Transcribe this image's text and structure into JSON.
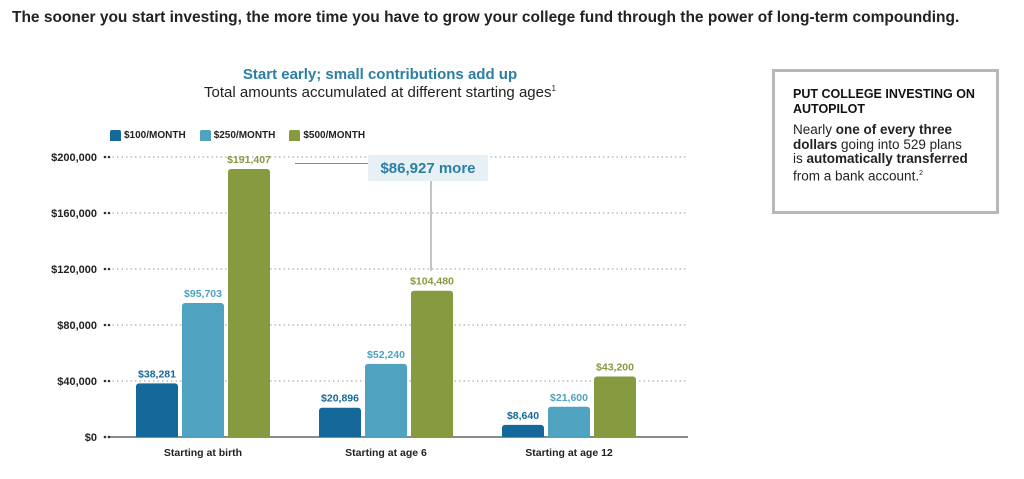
{
  "headline": "The sooner you start investing, the more time you have to grow your college fund through the power of long-term compounding.",
  "chart_data": {
    "type": "bar",
    "title": "Start early; small contributions add up",
    "subtitle": "Total amounts accumulated at different starting ages",
    "subtitle_footnote": "1",
    "categories": [
      "Starting at birth",
      "Starting at age 6",
      "Starting at age 12"
    ],
    "series": [
      {
        "name": "$100/MONTH",
        "color": "#15699a",
        "values": [
          38281,
          20896,
          8640
        ],
        "labels": [
          "$38,281",
          "$20,896",
          "$8,640"
        ]
      },
      {
        "name": "$250/MONTH",
        "color": "#4fa3c1",
        "values": [
          95703,
          52240,
          21600
        ],
        "labels": [
          "$95,703",
          "$52,240",
          "$21,600"
        ]
      },
      {
        "name": "$500/MONTH",
        "color": "#869a3f",
        "values": [
          191407,
          104480,
          43200
        ],
        "labels": [
          "$191,407",
          "$104,480",
          "$43,200"
        ]
      }
    ],
    "yticks": [
      0,
      40000,
      80000,
      120000,
      160000,
      200000
    ],
    "ytick_labels": [
      "$0",
      "$40,000",
      "$80,000",
      "$120,000",
      "$160,000",
      "$200,000"
    ],
    "ylim": [
      0,
      200000
    ],
    "grid": true,
    "legend_position": "top-left",
    "annotation": "$86,927 more"
  },
  "sidebar": {
    "title": "PUT COLLEGE INVESTING ON AUTOPILOT",
    "body_1": "Nearly ",
    "body_bold_1": "one of every three dollars",
    "body_2": " going into 529 plans is ",
    "body_bold_2": "automatically transferred",
    "body_3": " from a bank account.",
    "footnote": "2"
  }
}
